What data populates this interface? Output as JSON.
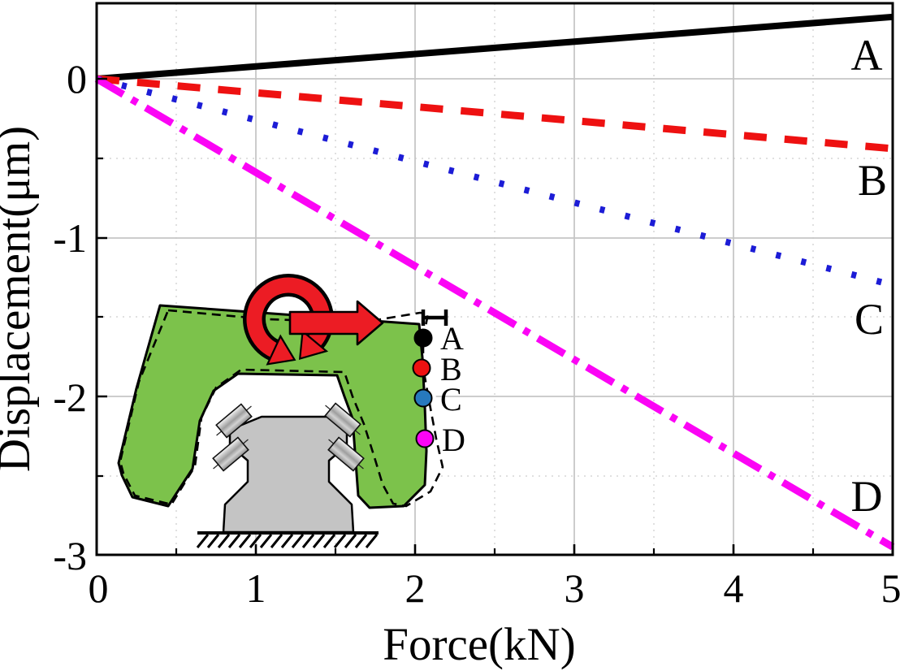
{
  "chart_data": {
    "type": "line",
    "title": "",
    "xlabel": "Force(kN)",
    "ylabel": "Displacement(μm)",
    "xlim": [
      0,
      5
    ],
    "ylim": [
      -3,
      0.5
    ],
    "x_ticks": [
      "0",
      "1",
      "2",
      "3",
      "4",
      "5"
    ],
    "y_ticks": [
      "0",
      "-1",
      "-2",
      "-3"
    ],
    "grid": {
      "major": "solid gray at integers",
      "minor": "dashed light gray at 0.5 steps"
    },
    "x": [
      0,
      5
    ],
    "series": [
      {
        "name": "A",
        "color": "#000000",
        "style": "solid",
        "values": [
          0,
          0.39
        ]
      },
      {
        "name": "B",
        "color": "#EE1111",
        "style": "dashed",
        "values": [
          0,
          -0.44
        ]
      },
      {
        "name": "C",
        "color": "#1C1CD6",
        "style": "dotted",
        "values": [
          0,
          -1.3
        ]
      },
      {
        "name": "D",
        "color": "#FB04F5",
        "style": "dash-dot",
        "values": [
          0,
          -2.95
        ]
      }
    ],
    "legend": "inline letters A, B, C, D at the right ends of the lines"
  },
  "inset": {
    "description": "Cross-section schematic: green deformed carriage on gray guide rail, dashed undeformed outline, red moment and force arrows, measurement points A-D",
    "body_color": "#7CC24B",
    "rail_color": "#C4C4C4",
    "arrow_color": "#EC1C24",
    "points": [
      {
        "label": "A",
        "color": "#000000"
      },
      {
        "label": "B",
        "color": "#EE1111"
      },
      {
        "label": "C",
        "color": "#2779BE"
      },
      {
        "label": "D",
        "color": "#FB04F5"
      }
    ]
  }
}
